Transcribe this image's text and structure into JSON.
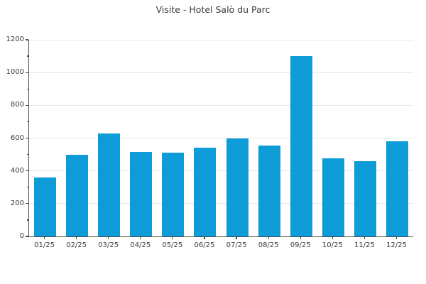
{
  "title": "Visite - Hotel Salò du Parc",
  "colors": {
    "bar": "#0d9cd8",
    "axis": "#4a4a4a",
    "grid": "#e6e6e6",
    "text": "#3c3c3c",
    "background": "#ffffff"
  },
  "chart_data": {
    "type": "bar",
    "title": "Visite - Hotel Salò du Parc",
    "categories": [
      "01/25",
      "02/25",
      "03/25",
      "04/25",
      "05/25",
      "06/25",
      "07/25",
      "08/25",
      "09/25",
      "10/25",
      "11/25",
      "12/25"
    ],
    "values": [
      360,
      500,
      630,
      515,
      510,
      540,
      600,
      555,
      1100,
      475,
      460,
      580
    ],
    "xlabel": "",
    "ylabel": "",
    "ylim": [
      0,
      1200
    ],
    "yticks": [
      0,
      200,
      400,
      600,
      800,
      1000,
      1200
    ],
    "y_minor_step": 100,
    "grid": "horizontal major gridlines only",
    "legend": "none",
    "bar_color": "#0d9cd8"
  }
}
